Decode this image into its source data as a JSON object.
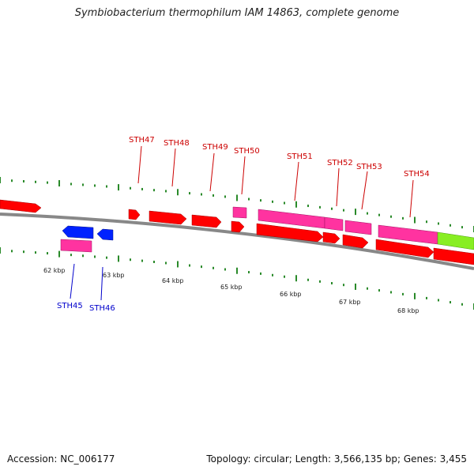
{
  "title": "Symbiobacterium thermophilum IAM 14863, complete genome",
  "footer": {
    "accession": "Accession: NC_006177",
    "topology": "Topology: circular; Length: 3,566,135 bp; Genes: 3,455"
  },
  "colors": {
    "cds": "#ff0000",
    "gene": "#ff33a0",
    "rna": "#0022ff",
    "other": "#88ee22",
    "backbone": "#888888",
    "tick": "#2a8a2a",
    "label_forward": "#cc0000",
    "label_reverse": "#0000cc"
  },
  "scale_labels": [
    "62 kbp",
    "63 kbp",
    "64 kbp",
    "65 kbp",
    "66 kbp",
    "67 kbp",
    "68 kbp"
  ],
  "gene_labels": {
    "top": [
      "STH47",
      "STH48",
      "STH49",
      "STH50",
      "STH51",
      "STH52",
      "STH53",
      "STH54"
    ],
    "bottom": [
      "STH45",
      "STH46"
    ]
  }
}
